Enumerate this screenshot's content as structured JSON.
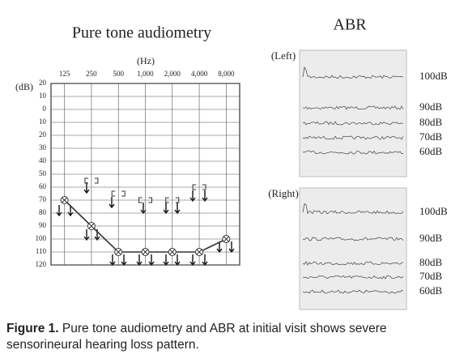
{
  "header": {
    "title": "Pure tone audiometry",
    "x_unit": "(Hz)",
    "y_unit": "(dB)"
  },
  "chart_data": {
    "type": "line",
    "categories": [
      "125",
      "250",
      "500",
      "1,000",
      "2,000",
      "4,000",
      "8,000"
    ],
    "series": [
      {
        "color": "#333333",
        "marker": "circle-x",
        "values": [
          70,
          90,
          110,
          110,
          110,
          110,
          100
        ]
      },
      {
        "color": "#333333",
        "marker": "bracket",
        "values": [
          null,
          55,
          65,
          70,
          70,
          60,
          null
        ]
      }
    ],
    "ylim": [
      -20,
      120
    ],
    "y_inverted": true,
    "yticks": [
      {
        "value": -20,
        "label": "20"
      },
      {
        "value": -10,
        "label": "10"
      },
      0,
      10,
      20,
      30,
      40,
      50,
      60,
      70,
      80,
      90,
      100,
      110,
      120
    ],
    "grid": true
  },
  "abr": {
    "title": "ABR",
    "panels": [
      {
        "label": "(Left)",
        "levels": [
          "100dB",
          "90dB",
          "80dB",
          "70dB",
          "60dB"
        ]
      },
      {
        "label": "(Right)",
        "levels": [
          "100dB",
          "90dB",
          "80dB",
          "70dB",
          "60dB"
        ]
      }
    ]
  },
  "caption": {
    "label": "Figure 1.",
    "text": "Pure tone audiometry and ABR at initial visit shows severe sensorineural hearing loss pattern."
  }
}
